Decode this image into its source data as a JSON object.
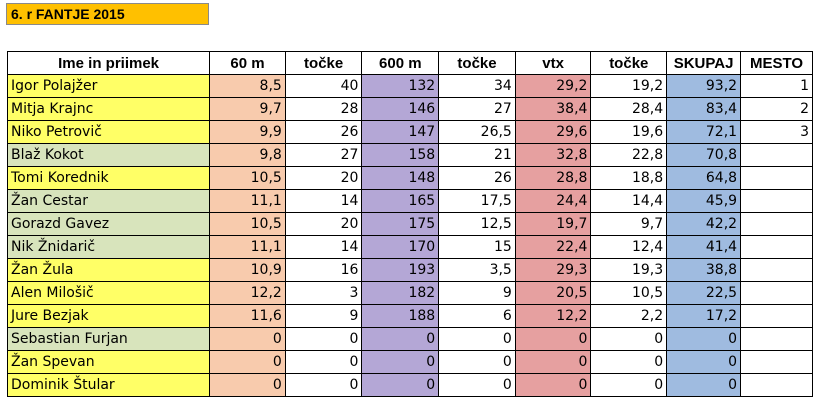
{
  "title": "6. r FANTJE 2015",
  "colors": {
    "title_bg": "#ffc000",
    "sixty_bg": "#f8cbad",
    "sixhundred_bg": "#b4a7d6",
    "vtx_bg": "#e6a0a0",
    "sum_bg": "#9fbbe0",
    "name_yellow": "#ffff66",
    "name_green": "#d8e4bc"
  },
  "headers": [
    "Ime in priimek",
    "60 m",
    "točke",
    "600 m",
    "točke",
    "vtx",
    "točke",
    "SKUPAJ",
    "MESTO"
  ],
  "rows": [
    {
      "name": "Igor Polajžer",
      "m60": "8,5",
      "p60": "40",
      "m600": "132",
      "p600": "34",
      "vtx": "29,2",
      "pvtx": "19,2",
      "sum": "93,2",
      "mesto": "1",
      "highlight": "yellow"
    },
    {
      "name": "Mitja Krajnc",
      "m60": "9,7",
      "p60": "28",
      "m600": "146",
      "p600": "27",
      "vtx": "38,4",
      "pvtx": "28,4",
      "sum": "83,4",
      "mesto": "2",
      "highlight": "yellow"
    },
    {
      "name": "Niko Petrovič",
      "m60": "9,9",
      "p60": "26",
      "m600": "147",
      "p600": "26,5",
      "vtx": "29,6",
      "pvtx": "19,6",
      "sum": "72,1",
      "mesto": "3",
      "highlight": "yellow"
    },
    {
      "name": "Blaž Kokot",
      "m60": "9,8",
      "p60": "27",
      "m600": "158",
      "p600": "21",
      "vtx": "32,8",
      "pvtx": "22,8",
      "sum": "70,8",
      "mesto": "",
      "highlight": "green"
    },
    {
      "name": "Tomi Korednik",
      "m60": "10,5",
      "p60": "20",
      "m600": "148",
      "p600": "26",
      "vtx": "28,8",
      "pvtx": "18,8",
      "sum": "64,8",
      "mesto": "",
      "highlight": "yellow"
    },
    {
      "name": "Žan Cestar",
      "m60": "11,1",
      "p60": "14",
      "m600": "165",
      "p600": "17,5",
      "vtx": "24,4",
      "pvtx": "14,4",
      "sum": "45,9",
      "mesto": "",
      "highlight": "green"
    },
    {
      "name": "Gorazd Gavez",
      "m60": "10,5",
      "p60": "20",
      "m600": "175",
      "p600": "12,5",
      "vtx": "19,7",
      "pvtx": "9,7",
      "sum": "42,2",
      "mesto": "",
      "highlight": "green"
    },
    {
      "name": "Nik Žnidarič",
      "m60": "11,1",
      "p60": "14",
      "m600": "170",
      "p600": "15",
      "vtx": "22,4",
      "pvtx": "12,4",
      "sum": "41,4",
      "mesto": "",
      "highlight": "green"
    },
    {
      "name": "Žan Žula",
      "m60": "10,9",
      "p60": "16",
      "m600": "193",
      "p600": "3,5",
      "vtx": "29,3",
      "pvtx": "19,3",
      "sum": "38,8",
      "mesto": "",
      "highlight": "yellow"
    },
    {
      "name": "Alen Milošič",
      "m60": "12,2",
      "p60": "3",
      "m600": "182",
      "p600": "9",
      "vtx": "20,5",
      "pvtx": "10,5",
      "sum": "22,5",
      "mesto": "",
      "highlight": "yellow"
    },
    {
      "name": "Jure Bezjak",
      "m60": "11,6",
      "p60": "9",
      "m600": "188",
      "p600": "6",
      "vtx": "12,2",
      "pvtx": "2,2",
      "sum": "17,2",
      "mesto": "",
      "highlight": "yellow"
    },
    {
      "name": "Sebastian Furjan",
      "m60": "0",
      "p60": "0",
      "m600": "0",
      "p600": "0",
      "vtx": "0",
      "pvtx": "0",
      "sum": "0",
      "mesto": "",
      "highlight": "green"
    },
    {
      "name": "Žan Spevan",
      "m60": "0",
      "p60": "0",
      "m600": "0",
      "p600": "0",
      "vtx": "0",
      "pvtx": "0",
      "sum": "0",
      "mesto": "",
      "highlight": "yellow"
    },
    {
      "name": "Dominik Štular",
      "m60": "0",
      "p60": "0",
      "m600": "0",
      "p600": "0",
      "vtx": "0",
      "pvtx": "0",
      "sum": "0",
      "mesto": "",
      "highlight": "yellow"
    }
  ]
}
